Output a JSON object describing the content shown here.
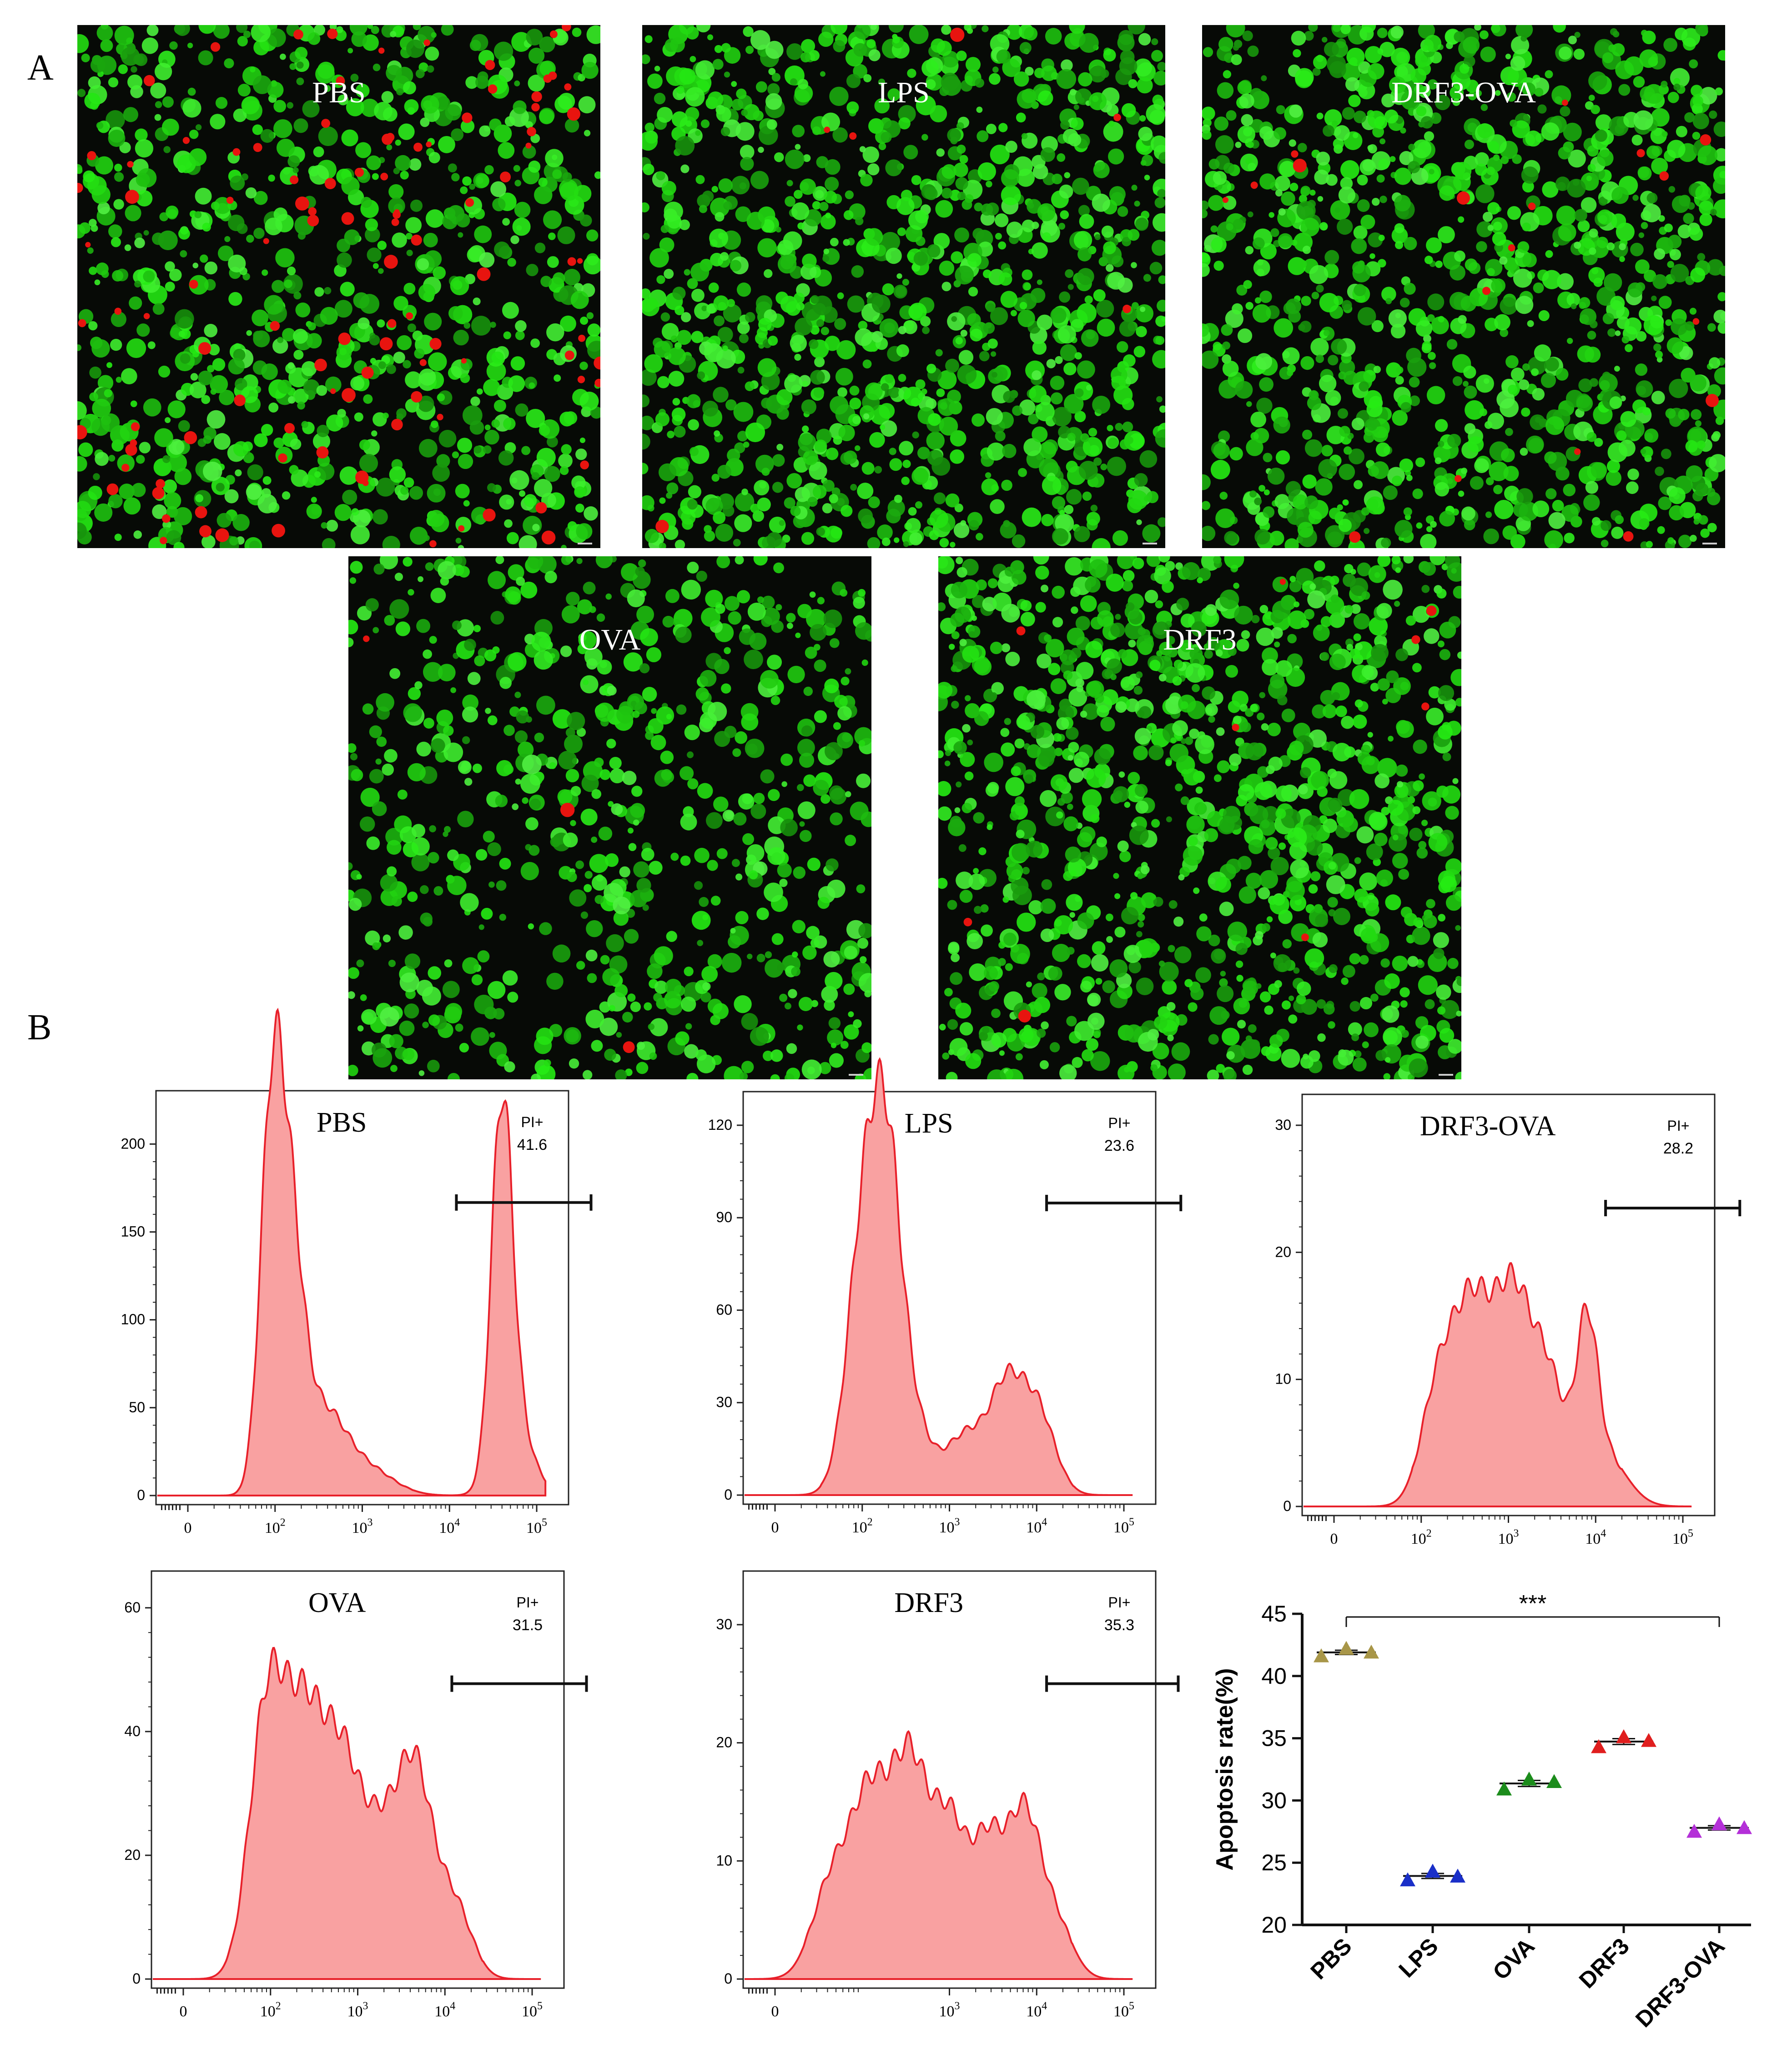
{
  "panels": {
    "a_label": "A",
    "b_label": "B"
  },
  "micrographs": [
    {
      "id": "pbs",
      "label": "PBS",
      "red_density": 0.35,
      "green_density": 1.0
    },
    {
      "id": "lps",
      "label": "LPS",
      "red_density": 0.02,
      "green_density": 1.3
    },
    {
      "id": "drf3-ova",
      "label": "DRF3-OVA",
      "red_density": 0.06,
      "green_density": 1.3
    },
    {
      "id": "ova",
      "label": "OVA",
      "red_density": 0.01,
      "green_density": 0.8
    },
    {
      "id": "drf3",
      "label": "DRF3",
      "red_density": 0.03,
      "green_density": 1.3
    }
  ],
  "colors": {
    "micrograph_bg": "#070a06",
    "cell_green": "#2fcf22",
    "cell_red": "#e8140f",
    "hist_fill": "#f9a1a1",
    "hist_line": "#e8202a",
    "axis": "#222222",
    "pbs": "#a89648",
    "lps": "#1a2fc8",
    "ova": "#1c8c1c",
    "drf3": "#e01e1e",
    "drf3-ova": "#b430d8"
  },
  "chart_data": [
    {
      "type": "area",
      "id": "hist-pbs",
      "title": "PBS",
      "gate_label": "PI+",
      "gate_value": "41.6",
      "gate_range": [
        1200,
        42000
      ],
      "ylim": [
        0,
        220
      ],
      "yticks": [
        "0",
        "50",
        "100",
        "150",
        "200"
      ],
      "xticks": [
        "0",
        "10^2",
        "10^3",
        "10^4",
        "10^5"
      ],
      "peaks": [
        [
          0.95,
          175,
          0.13
        ],
        [
          1.15,
          150,
          0.16
        ],
        [
          1.55,
          45,
          0.25
        ],
        [
          2.05,
          15,
          0.3
        ],
        [
          3.6,
          200,
          0.12
        ],
        [
          3.75,
          40,
          0.2
        ]
      ]
    },
    {
      "type": "area",
      "id": "hist-lps",
      "title": "LPS",
      "gate_label": "PI+",
      "gate_value": "23.6",
      "gate_range": [
        1300,
        45000
      ],
      "ylim": [
        0,
        125
      ],
      "yticks": [
        "0",
        "30",
        "60",
        "90",
        "120"
      ],
      "xticks": [
        "0",
        "10^2",
        "10^3",
        "10^4",
        "10^5"
      ],
      "peaks": [
        [
          1.05,
          95,
          0.2
        ],
        [
          1.3,
          70,
          0.16
        ],
        [
          1.55,
          25,
          0.2
        ],
        [
          2.2,
          20,
          0.25
        ],
        [
          2.65,
          30,
          0.18
        ],
        [
          3.0,
          28,
          0.2
        ]
      ]
    },
    {
      "type": "area",
      "id": "hist-drf3-ova",
      "title": "DRF3-OVA",
      "gate_label": "PI+",
      "gate_value": "28.2",
      "gate_range": [
        1300,
        45000
      ],
      "ylim": [
        0,
        31
      ],
      "yticks": [
        "0",
        "10",
        "20",
        "30"
      ],
      "xticks": [
        "0",
        "10^2",
        "10^3",
        "10^4",
        "10^5"
      ],
      "peaks": [
        [
          1.2,
          9,
          0.2
        ],
        [
          1.6,
          15,
          0.22
        ],
        [
          2.05,
          15,
          0.2
        ],
        [
          2.45,
          10,
          0.2
        ],
        [
          2.9,
          12,
          0.12
        ],
        [
          3.1,
          4,
          0.25
        ]
      ]
    },
    {
      "type": "area",
      "id": "hist-ova",
      "title": "OVA",
      "gate_label": "PI+",
      "gate_value": "31.5",
      "gate_range": [
        1200,
        42000
      ],
      "ylim": [
        0,
        63
      ],
      "yticks": [
        "0",
        "20",
        "40",
        "60"
      ],
      "xticks": [
        "0",
        "10^2",
        "10^3",
        "10^4",
        "10^5"
      ],
      "peaks": [
        [
          0.95,
          40,
          0.2
        ],
        [
          1.4,
          42,
          0.25
        ],
        [
          1.85,
          28,
          0.2
        ],
        [
          2.25,
          20,
          0.2
        ],
        [
          2.65,
          33,
          0.2
        ],
        [
          3.1,
          12,
          0.2
        ]
      ]
    },
    {
      "type": "area",
      "id": "hist-drf3",
      "title": "DRF3",
      "gate_label": "PI+",
      "gate_value": "35.3",
      "gate_range": [
        1300,
        42000
      ],
      "ylim": [
        0,
        33
      ],
      "yticks": [
        "0",
        "10",
        "20",
        "30"
      ],
      "xticks": [
        "0",
        "10^3",
        "10^4",
        "10^5"
      ],
      "peaks": [
        [
          0.65,
          8,
          0.22
        ],
        [
          1.1,
          15,
          0.22
        ],
        [
          1.55,
          17,
          0.2
        ],
        [
          2.0,
          13,
          0.2
        ],
        [
          2.45,
          11,
          0.18
        ],
        [
          2.85,
          13,
          0.18
        ],
        [
          3.2,
          5,
          0.2
        ]
      ]
    },
    {
      "type": "scatter",
      "id": "apoptosis",
      "ylabel": "Apoptosis rate(%)",
      "ylim": [
        20,
        45
      ],
      "yticks": [
        "20",
        "25",
        "30",
        "35",
        "40",
        "45"
      ],
      "categories": [
        "PBS",
        "LPS",
        "OVA",
        "DRF3",
        "DRF3-OVA"
      ],
      "series": [
        {
          "category": "PBS",
          "values": [
            41.6,
            42.2,
            41.9
          ]
        },
        {
          "category": "LPS",
          "values": [
            23.6,
            24.3,
            23.9
          ]
        },
        {
          "category": "OVA",
          "values": [
            30.9,
            31.7,
            31.5
          ]
        },
        {
          "category": "DRF3",
          "values": [
            34.3,
            35.1,
            34.8
          ]
        },
        {
          "category": "DRF3-OVA",
          "values": [
            27.5,
            28.1,
            27.8
          ]
        }
      ],
      "significance": "***"
    }
  ]
}
